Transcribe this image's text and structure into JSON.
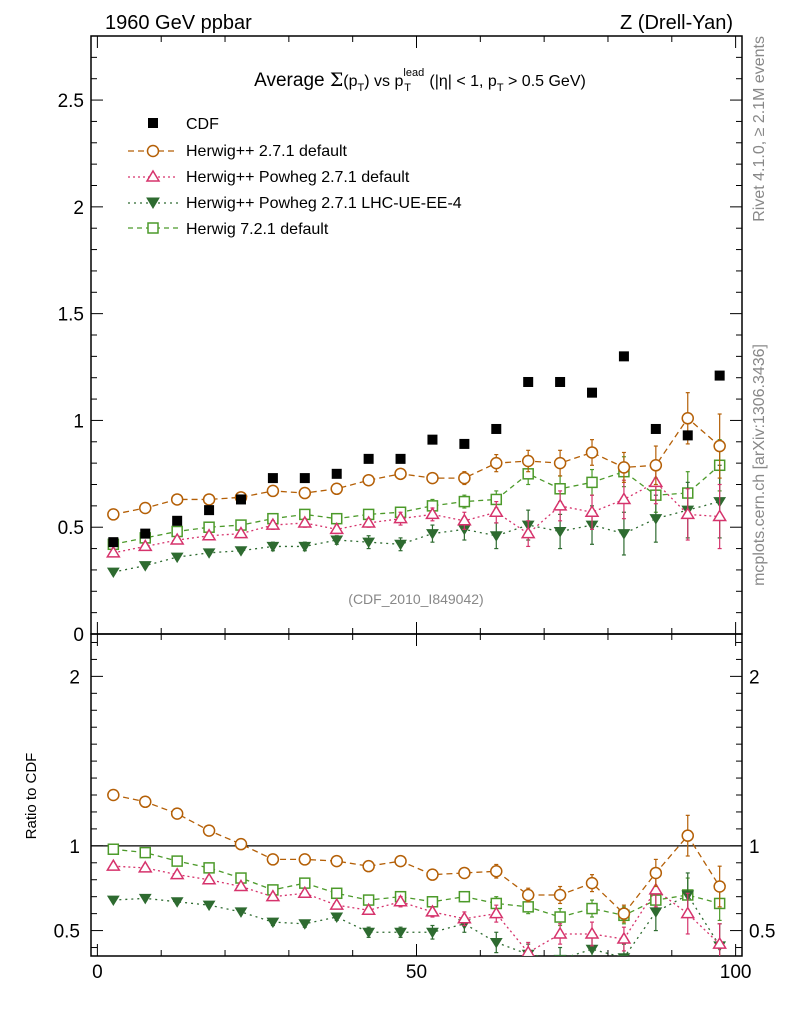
{
  "header": {
    "left": "1960 GeV ppbar",
    "right": "Z (Drell-Yan)"
  },
  "side_labels": {
    "rivet": "Rivet 4.1.0, ≥ 2.1M events",
    "mcplots": "mcplots.cern.ch [arXiv:1306.3436]"
  },
  "chart_data": {
    "type": "scatter",
    "title": "Average Σ(p_T) vs p_T^lead (|η| < 1, p_T > 0.5 GeV)",
    "title_parts": {
      "a": "Average ",
      "sigma": "Σ",
      "b": "(p",
      "sub1": "T",
      "c": ") vs p",
      "sup": "lead",
      "sub2": "T",
      "d": " (|η| < 1, p",
      "sub3": "T",
      "e": " > 0.5 GeV)"
    },
    "analysis_tag": "(CDF_2010_I849042)",
    "xlabel": "",
    "ylabel_main": "",
    "ylabel_ratio": "Ratio to CDF",
    "xlim": [
      -1,
      101
    ],
    "ylim_main": [
      0,
      2.8
    ],
    "ylim_ratio": [
      0.35,
      2.25
    ],
    "x_ticks": [
      "0",
      "50",
      "100"
    ],
    "y_ticks_main": [
      "0",
      "0.5",
      "1",
      "1.5",
      "2",
      "2.5"
    ],
    "y_ticks_ratio": [
      "0.5",
      "1",
      "2"
    ],
    "x": [
      2.5,
      7.5,
      12.5,
      17.5,
      22.5,
      27.5,
      32.5,
      37.5,
      42.5,
      47.5,
      52.5,
      57.5,
      62.5,
      67.5,
      72.5,
      77.5,
      82.5,
      87.5,
      92.5,
      97.5
    ],
    "data_series": {
      "name": "CDF",
      "values": [
        0.43,
        0.47,
        0.53,
        0.58,
        0.63,
        0.73,
        0.73,
        0.75,
        0.82,
        0.82,
        0.91,
        0.89,
        0.96,
        1.18,
        1.18,
        1.13,
        1.3,
        0.96,
        0.93,
        1.21
      ]
    },
    "series": [
      {
        "name": "Herwig++ 2.7.1 default",
        "color": "#b45f06",
        "dash": "6,4",
        "marker": "circle",
        "values": [
          0.56,
          0.59,
          0.63,
          0.63,
          0.64,
          0.67,
          0.66,
          0.68,
          0.72,
          0.75,
          0.73,
          0.73,
          0.8,
          0.81,
          0.8,
          0.85,
          0.78,
          0.79,
          1.01,
          0.88
        ],
        "errors": [
          0.01,
          0.01,
          0.01,
          0.01,
          0.01,
          0.01,
          0.01,
          0.01,
          0.01,
          0.02,
          0.02,
          0.03,
          0.04,
          0.05,
          0.06,
          0.06,
          0.07,
          0.09,
          0.12,
          0.15
        ],
        "ratio": [
          1.3,
          1.26,
          1.19,
          1.09,
          1.01,
          0.92,
          0.92,
          0.91,
          0.88,
          0.91,
          0.83,
          0.84,
          0.85,
          0.71,
          0.71,
          0.78,
          0.6,
          0.84,
          1.06,
          0.76
        ],
        "ratio_errors": [
          0.01,
          0.01,
          0.01,
          0.01,
          0.01,
          0.01,
          0.01,
          0.01,
          0.01,
          0.02,
          0.02,
          0.03,
          0.04,
          0.04,
          0.05,
          0.05,
          0.05,
          0.08,
          0.12,
          0.12
        ]
      },
      {
        "name": "Herwig++ Powheg 2.7.1 default",
        "color": "#d6336c",
        "dash": "2,3",
        "marker": "triangle-up",
        "values": [
          0.38,
          0.41,
          0.44,
          0.46,
          0.47,
          0.51,
          0.52,
          0.49,
          0.52,
          0.54,
          0.56,
          0.53,
          0.57,
          0.47,
          0.6,
          0.57,
          0.63,
          0.71,
          0.56,
          0.55
        ],
        "errors": [
          0.01,
          0.01,
          0.01,
          0.01,
          0.01,
          0.02,
          0.02,
          0.02,
          0.02,
          0.03,
          0.03,
          0.04,
          0.05,
          0.06,
          0.07,
          0.08,
          0.09,
          0.1,
          0.12,
          0.15
        ],
        "ratio": [
          0.88,
          0.87,
          0.83,
          0.8,
          0.76,
          0.7,
          0.72,
          0.65,
          0.62,
          0.67,
          0.61,
          0.57,
          0.6,
          0.37,
          0.48,
          0.48,
          0.45,
          0.74,
          0.6,
          0.42
        ],
        "ratio_errors": [
          0.01,
          0.01,
          0.01,
          0.01,
          0.01,
          0.02,
          0.02,
          0.02,
          0.02,
          0.03,
          0.03,
          0.04,
          0.05,
          0.06,
          0.06,
          0.07,
          0.07,
          0.1,
          0.12,
          0.12
        ]
      },
      {
        "name": "Herwig++ Powheg 2.7.1 LHC-UE-EE-4",
        "color": "#2e6b30",
        "dash": "2,4",
        "marker": "triangle-down",
        "values": [
          0.29,
          0.32,
          0.36,
          0.38,
          0.39,
          0.41,
          0.41,
          0.44,
          0.43,
          0.42,
          0.47,
          0.49,
          0.46,
          0.51,
          0.48,
          0.51,
          0.47,
          0.54,
          0.58,
          0.62
        ],
        "errors": [
          0.01,
          0.01,
          0.01,
          0.01,
          0.01,
          0.02,
          0.02,
          0.02,
          0.03,
          0.03,
          0.04,
          0.05,
          0.06,
          0.07,
          0.08,
          0.09,
          0.1,
          0.11,
          0.13,
          0.17
        ],
        "ratio": [
          0.68,
          0.69,
          0.67,
          0.65,
          0.61,
          0.55,
          0.54,
          0.58,
          0.49,
          0.49,
          0.49,
          0.54,
          0.43,
          0.36,
          0.33,
          0.39,
          0.34,
          0.61,
          0.71,
          0.41
        ],
        "ratio_errors": [
          0.01,
          0.01,
          0.01,
          0.01,
          0.01,
          0.02,
          0.02,
          0.02,
          0.03,
          0.03,
          0.04,
          0.05,
          0.06,
          0.06,
          0.07,
          0.08,
          0.08,
          0.11,
          0.13,
          0.13
        ]
      },
      {
        "name": "Herwig 7.2.1 default",
        "color": "#4c9a2a",
        "dash": "5,4",
        "marker": "square-open",
        "values": [
          0.42,
          0.45,
          0.48,
          0.5,
          0.51,
          0.54,
          0.56,
          0.54,
          0.56,
          0.57,
          0.6,
          0.62,
          0.63,
          0.75,
          0.68,
          0.71,
          0.76,
          0.65,
          0.66,
          0.79
        ],
        "errors": [
          0.01,
          0.01,
          0.01,
          0.01,
          0.01,
          0.02,
          0.02,
          0.02,
          0.02,
          0.02,
          0.03,
          0.03,
          0.04,
          0.05,
          0.06,
          0.06,
          0.07,
          0.08,
          0.1,
          0.12
        ],
        "ratio": [
          0.98,
          0.96,
          0.91,
          0.87,
          0.81,
          0.74,
          0.78,
          0.72,
          0.68,
          0.7,
          0.67,
          0.7,
          0.66,
          0.64,
          0.58,
          0.63,
          0.59,
          0.68,
          0.71,
          0.66
        ],
        "ratio_errors": [
          0.01,
          0.01,
          0.01,
          0.01,
          0.01,
          0.02,
          0.02,
          0.02,
          0.02,
          0.02,
          0.03,
          0.03,
          0.04,
          0.04,
          0.05,
          0.05,
          0.05,
          0.08,
          0.1,
          0.1
        ]
      }
    ]
  }
}
